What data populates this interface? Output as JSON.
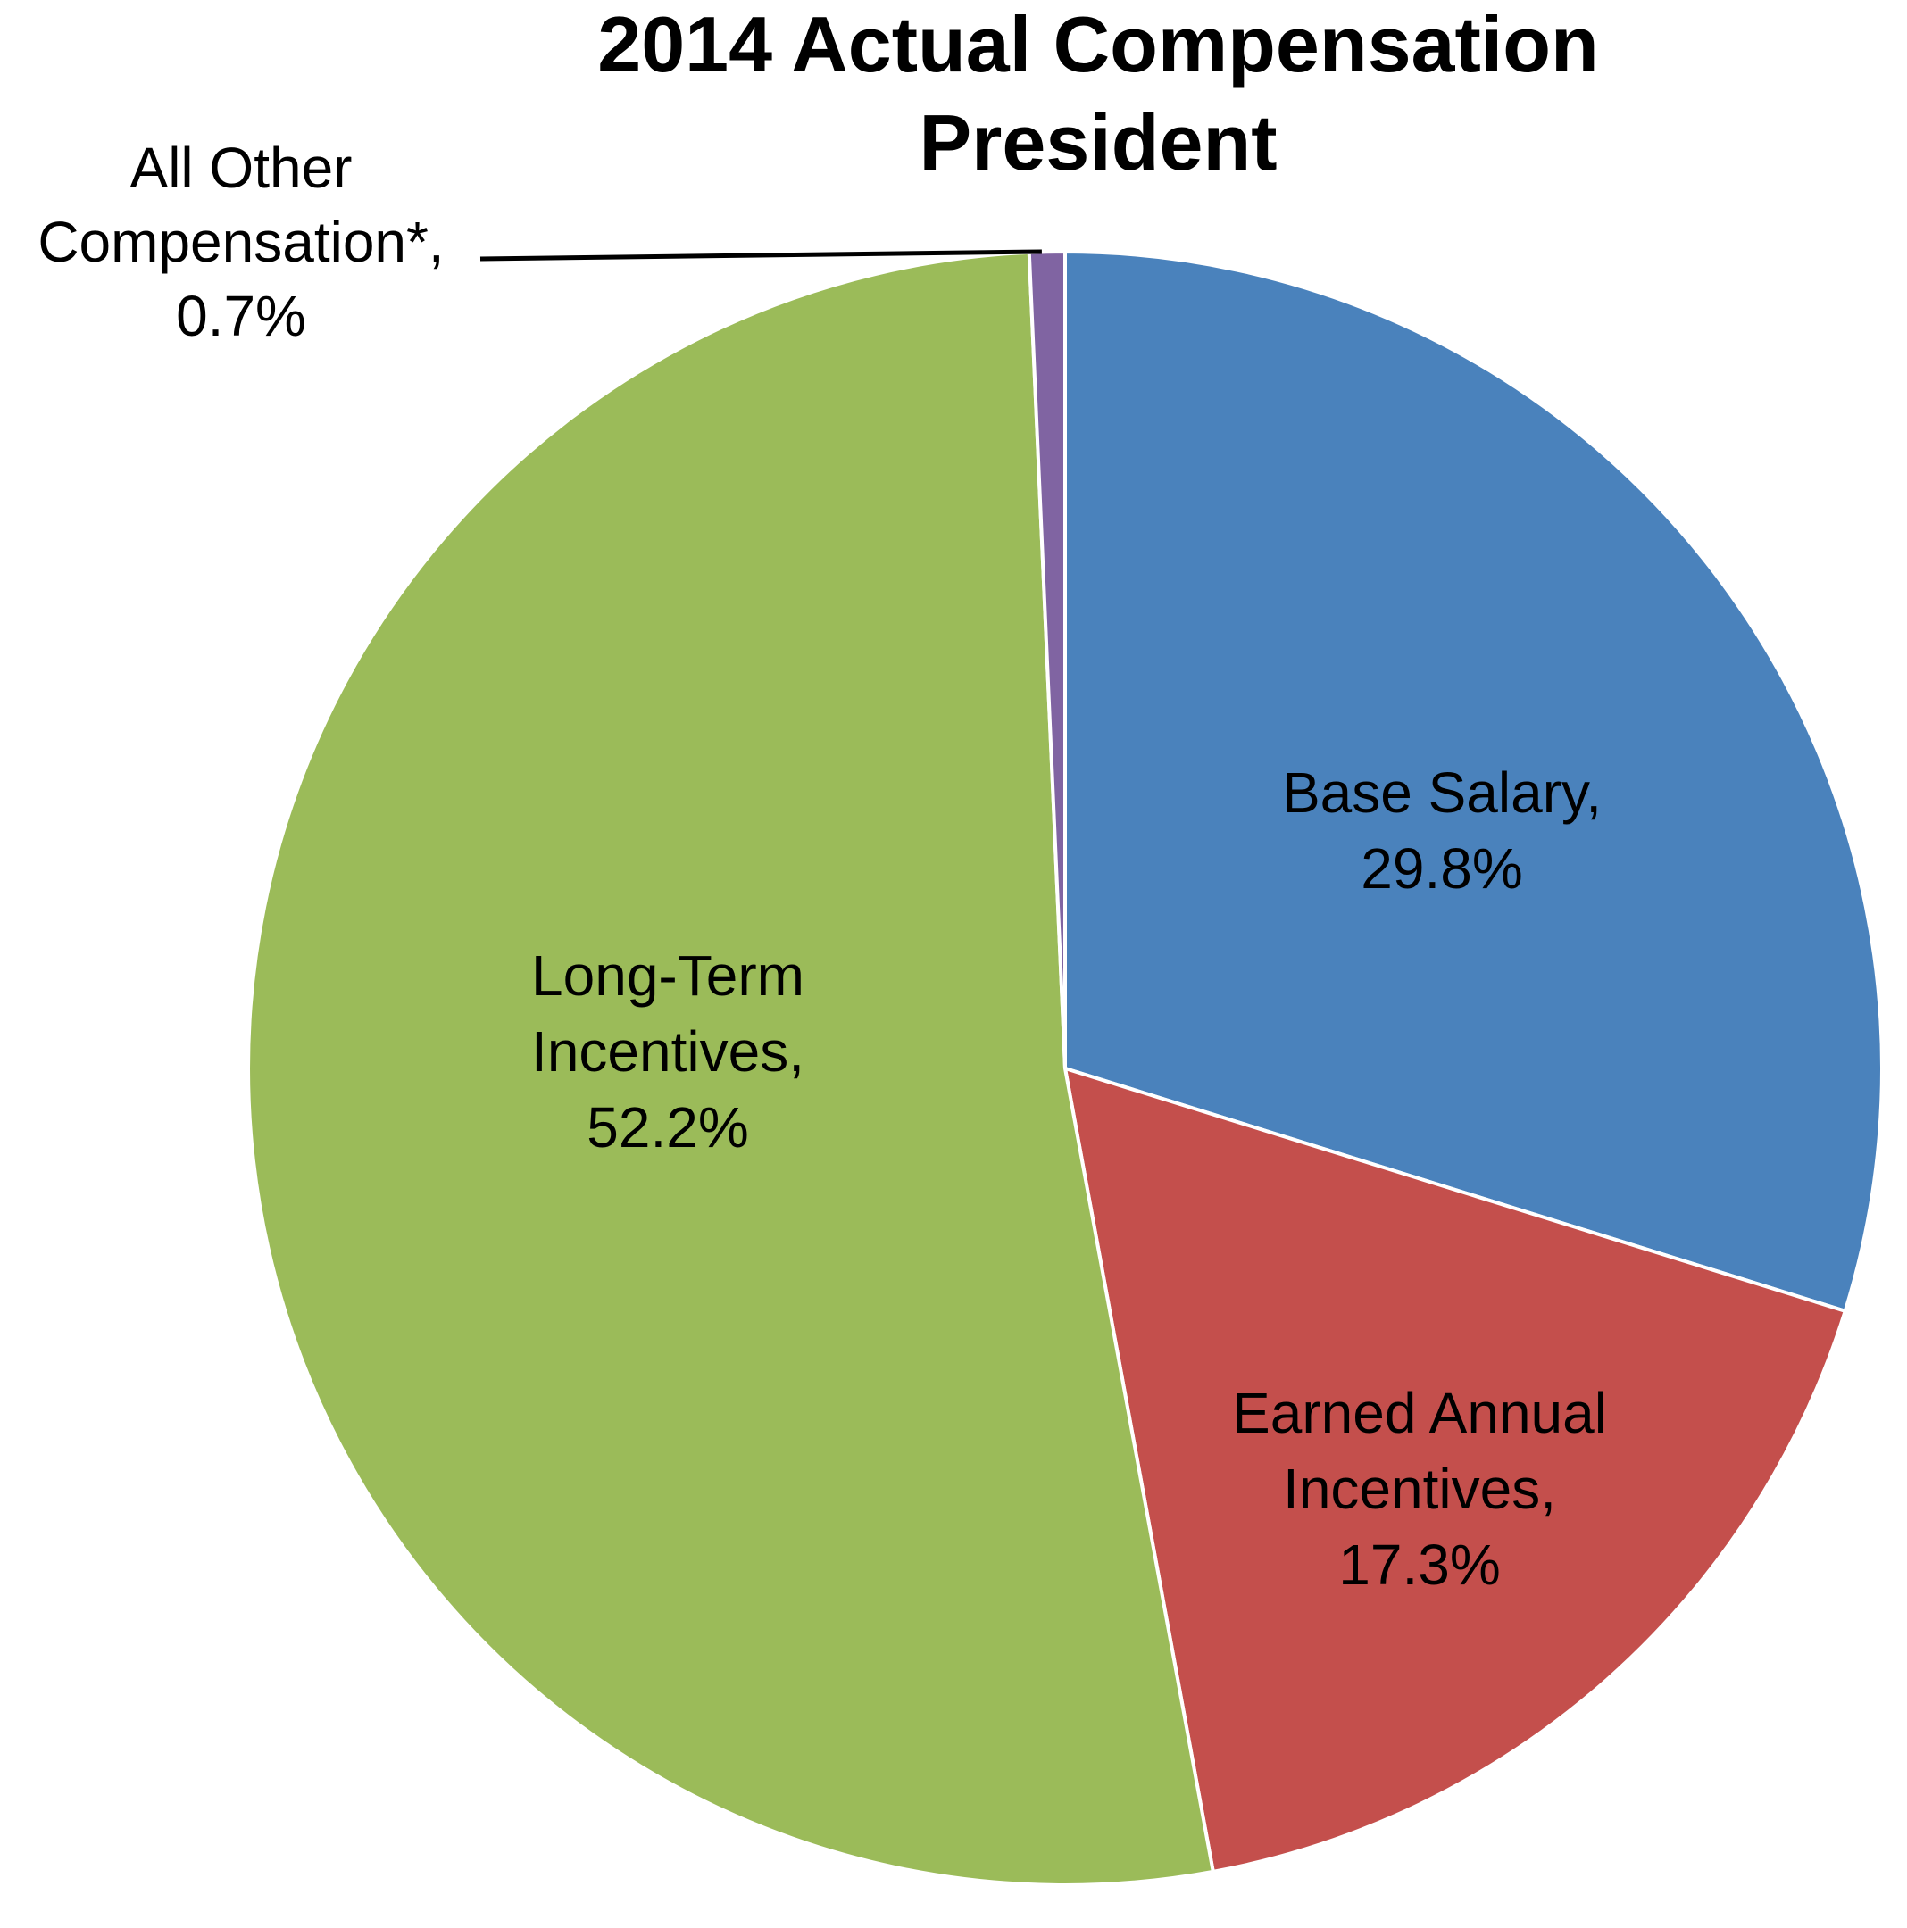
{
  "chart_data": {
    "type": "pie",
    "title": [
      "2014 Actual Compensation",
      "President"
    ],
    "slices": [
      {
        "label": [
          "Base Salary,"
        ],
        "value": 29.8,
        "value_text": "29.8%",
        "color": "#4a82bc"
      },
      {
        "label": [
          "Earned Annual",
          "Incentives,"
        ],
        "value": 17.3,
        "value_text": "17.3%",
        "color": "#c44f4c"
      },
      {
        "label": [
          "Long-Term",
          "Incentives,"
        ],
        "value": 52.2,
        "value_text": "52.2%",
        "color": "#9bbb59"
      },
      {
        "label": [
          "All Other",
          "Compensation*,"
        ],
        "value": 0.7,
        "value_text": "0.7%",
        "color": "#8064a2"
      }
    ],
    "start_angle_deg": 0,
    "direction": "clockwise",
    "legend": "none"
  }
}
